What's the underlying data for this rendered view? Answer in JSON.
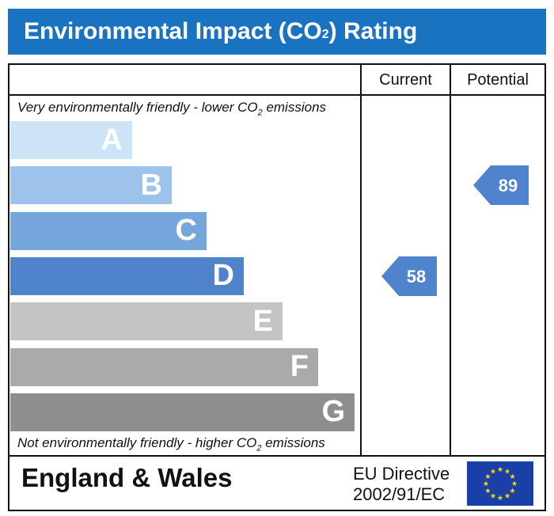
{
  "header": {
    "title_prefix": "Environmental Impact (CO",
    "title_sub": "2",
    "title_suffix": ") Rating"
  },
  "columns": {
    "current": "Current",
    "potential": "Potential"
  },
  "captions": {
    "top_prefix": "Very environmentally friendly - lower CO",
    "top_sub": "2",
    "top_suffix": " emissions",
    "bottom_prefix": "Not environmentally friendly - higher CO",
    "bottom_sub": "2",
    "bottom_suffix": " emissions"
  },
  "chart_data": {
    "type": "bar",
    "categories": [
      "A",
      "B",
      "C",
      "D",
      "E",
      "F",
      "G"
    ],
    "band_colors": [
      "#cde3f7",
      "#9dc3ec",
      "#76a6db",
      "#4f83cc",
      "#c4c4c4",
      "#aaaaaa",
      "#8e8e8e"
    ],
    "current_rating": 58,
    "current_band": "D",
    "potential_rating": 89,
    "potential_band": "B",
    "marker_color": "#4f83cc"
  },
  "footer": {
    "region": "England & Wales",
    "directive_line1": "EU Directive",
    "directive_line2": "2002/91/EC",
    "flag_icon": "eu-flag-icon"
  }
}
